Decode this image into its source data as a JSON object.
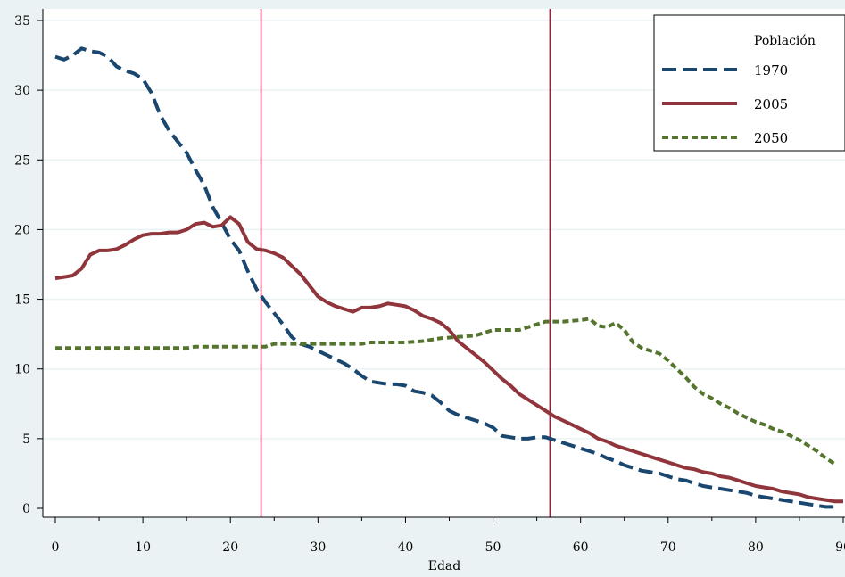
{
  "chart_data": {
    "type": "line",
    "title": "",
    "xlabel": "Edad",
    "ylabel": "",
    "xlim": [
      0,
      90
    ],
    "ylim": [
      0,
      35
    ],
    "x_ticks": [
      "0",
      "10",
      "20",
      "30",
      "40",
      "50",
      "60",
      "70",
      "80",
      "90"
    ],
    "y_ticks": [
      "0",
      "5",
      "10",
      "15",
      "20",
      "25",
      "30",
      "35"
    ],
    "grid": "horizontal",
    "legend": {
      "title": "Población",
      "position": "top-right"
    },
    "vlines": [
      23.5,
      56.5
    ],
    "vline_color": "#b0143c",
    "series": [
      {
        "name": "1970",
        "color": "#1a476f",
        "dash": "long-dash",
        "points": [
          [
            0,
            32.4
          ],
          [
            1,
            32.2
          ],
          [
            2,
            32.5
          ],
          [
            3,
            33.0
          ],
          [
            4,
            32.8
          ],
          [
            5,
            32.7
          ],
          [
            6,
            32.4
          ],
          [
            7,
            31.7
          ],
          [
            8,
            31.4
          ],
          [
            9,
            31.2
          ],
          [
            10,
            30.8
          ],
          [
            11,
            29.8
          ],
          [
            12,
            28.2
          ],
          [
            13,
            27.1
          ],
          [
            14,
            26.3
          ],
          [
            15,
            25.5
          ],
          [
            16,
            24.3
          ],
          [
            17,
            23.2
          ],
          [
            18,
            21.6
          ],
          [
            19,
            20.5
          ],
          [
            20,
            19.3
          ],
          [
            21,
            18.5
          ],
          [
            22,
            17.0
          ],
          [
            23,
            15.7
          ],
          [
            24,
            14.8
          ],
          [
            25,
            14.0
          ],
          [
            26,
            13.2
          ],
          [
            27,
            12.3
          ],
          [
            28,
            11.8
          ],
          [
            29,
            11.6
          ],
          [
            30,
            11.3
          ],
          [
            31,
            11.0
          ],
          [
            32,
            10.7
          ],
          [
            33,
            10.4
          ],
          [
            34,
            10.0
          ],
          [
            35,
            9.5
          ],
          [
            36,
            9.1
          ],
          [
            37,
            9.0
          ],
          [
            38,
            8.9
          ],
          [
            39,
            8.9
          ],
          [
            40,
            8.8
          ],
          [
            41,
            8.4
          ],
          [
            42,
            8.3
          ],
          [
            43,
            8.1
          ],
          [
            44,
            7.6
          ],
          [
            45,
            7.0
          ],
          [
            46,
            6.7
          ],
          [
            47,
            6.5
          ],
          [
            48,
            6.3
          ],
          [
            49,
            6.1
          ],
          [
            50,
            5.8
          ],
          [
            51,
            5.2
          ],
          [
            52,
            5.1
          ],
          [
            53,
            5.0
          ],
          [
            54,
            5.0
          ],
          [
            55,
            5.1
          ],
          [
            56,
            5.1
          ],
          [
            57,
            4.9
          ],
          [
            58,
            4.7
          ],
          [
            59,
            4.5
          ],
          [
            60,
            4.3
          ],
          [
            61,
            4.1
          ],
          [
            62,
            3.9
          ],
          [
            63,
            3.6
          ],
          [
            64,
            3.4
          ],
          [
            65,
            3.1
          ],
          [
            66,
            2.9
          ],
          [
            67,
            2.7
          ],
          [
            68,
            2.6
          ],
          [
            69,
            2.5
          ],
          [
            70,
            2.3
          ],
          [
            71,
            2.1
          ],
          [
            72,
            2.0
          ],
          [
            73,
            1.8
          ],
          [
            74,
            1.6
          ],
          [
            75,
            1.5
          ],
          [
            76,
            1.4
          ],
          [
            77,
            1.3
          ],
          [
            78,
            1.2
          ],
          [
            79,
            1.1
          ],
          [
            80,
            0.9
          ],
          [
            81,
            0.8
          ],
          [
            82,
            0.7
          ],
          [
            83,
            0.6
          ],
          [
            84,
            0.5
          ],
          [
            85,
            0.4
          ],
          [
            86,
            0.3
          ],
          [
            87,
            0.2
          ],
          [
            88,
            0.1
          ],
          [
            89,
            0.1
          ]
        ]
      },
      {
        "name": "2005",
        "color": "#90353b",
        "dash": "solid",
        "points": [
          [
            0,
            16.5
          ],
          [
            1,
            16.6
          ],
          [
            2,
            16.7
          ],
          [
            3,
            17.2
          ],
          [
            4,
            18.2
          ],
          [
            5,
            18.5
          ],
          [
            6,
            18.5
          ],
          [
            7,
            18.6
          ],
          [
            8,
            18.9
          ],
          [
            9,
            19.3
          ],
          [
            10,
            19.6
          ],
          [
            11,
            19.7
          ],
          [
            12,
            19.7
          ],
          [
            13,
            19.8
          ],
          [
            14,
            19.8
          ],
          [
            15,
            20.0
          ],
          [
            16,
            20.4
          ],
          [
            17,
            20.5
          ],
          [
            18,
            20.2
          ],
          [
            19,
            20.3
          ],
          [
            20,
            20.9
          ],
          [
            21,
            20.4
          ],
          [
            22,
            19.1
          ],
          [
            23,
            18.6
          ],
          [
            24,
            18.5
          ],
          [
            25,
            18.3
          ],
          [
            26,
            18.0
          ],
          [
            27,
            17.4
          ],
          [
            28,
            16.8
          ],
          [
            29,
            16.0
          ],
          [
            30,
            15.2
          ],
          [
            31,
            14.8
          ],
          [
            32,
            14.5
          ],
          [
            33,
            14.3
          ],
          [
            34,
            14.1
          ],
          [
            35,
            14.4
          ],
          [
            36,
            14.4
          ],
          [
            37,
            14.5
          ],
          [
            38,
            14.7
          ],
          [
            39,
            14.6
          ],
          [
            40,
            14.5
          ],
          [
            41,
            14.2
          ],
          [
            42,
            13.8
          ],
          [
            43,
            13.6
          ],
          [
            44,
            13.3
          ],
          [
            45,
            12.8
          ],
          [
            46,
            12.0
          ],
          [
            47,
            11.5
          ],
          [
            48,
            11.0
          ],
          [
            49,
            10.5
          ],
          [
            50,
            9.9
          ],
          [
            51,
            9.3
          ],
          [
            52,
            8.8
          ],
          [
            53,
            8.2
          ],
          [
            54,
            7.8
          ],
          [
            55,
            7.4
          ],
          [
            56,
            7.0
          ],
          [
            57,
            6.6
          ],
          [
            58,
            6.3
          ],
          [
            59,
            6.0
          ],
          [
            60,
            5.7
          ],
          [
            61,
            5.4
          ],
          [
            62,
            5.0
          ],
          [
            63,
            4.8
          ],
          [
            64,
            4.5
          ],
          [
            65,
            4.3
          ],
          [
            66,
            4.1
          ],
          [
            67,
            3.9
          ],
          [
            68,
            3.7
          ],
          [
            69,
            3.5
          ],
          [
            70,
            3.3
          ],
          [
            71,
            3.1
          ],
          [
            72,
            2.9
          ],
          [
            73,
            2.8
          ],
          [
            74,
            2.6
          ],
          [
            75,
            2.5
          ],
          [
            76,
            2.3
          ],
          [
            77,
            2.2
          ],
          [
            78,
            2.0
          ],
          [
            79,
            1.8
          ],
          [
            80,
            1.6
          ],
          [
            81,
            1.5
          ],
          [
            82,
            1.4
          ],
          [
            83,
            1.2
          ],
          [
            84,
            1.1
          ],
          [
            85,
            1.0
          ],
          [
            86,
            0.8
          ],
          [
            87,
            0.7
          ],
          [
            88,
            0.6
          ],
          [
            89,
            0.5
          ],
          [
            90,
            0.5
          ]
        ]
      },
      {
        "name": "2050",
        "color": "#55752f",
        "dash": "short-dash",
        "points": [
          [
            0,
            11.5
          ],
          [
            5,
            11.5
          ],
          [
            10,
            11.5
          ],
          [
            15,
            11.5
          ],
          [
            16,
            11.6
          ],
          [
            20,
            11.6
          ],
          [
            24,
            11.6
          ],
          [
            25,
            11.8
          ],
          [
            30,
            11.8
          ],
          [
            35,
            11.8
          ],
          [
            36,
            11.9
          ],
          [
            40,
            11.9
          ],
          [
            42,
            12.0
          ],
          [
            44,
            12.2
          ],
          [
            46,
            12.3
          ],
          [
            48,
            12.4
          ],
          [
            49,
            12.6
          ],
          [
            50,
            12.8
          ],
          [
            53,
            12.8
          ],
          [
            55,
            13.2
          ],
          [
            56,
            13.4
          ],
          [
            58,
            13.4
          ],
          [
            60,
            13.5
          ],
          [
            61,
            13.6
          ],
          [
            62,
            13.1
          ],
          [
            63,
            13.0
          ],
          [
            64,
            13.3
          ],
          [
            65,
            12.8
          ],
          [
            66,
            11.9
          ],
          [
            67,
            11.5
          ],
          [
            68,
            11.3
          ],
          [
            69,
            11.1
          ],
          [
            70,
            10.6
          ],
          [
            71,
            10.0
          ],
          [
            72,
            9.4
          ],
          [
            73,
            8.7
          ],
          [
            74,
            8.2
          ],
          [
            75,
            7.9
          ],
          [
            76,
            7.5
          ],
          [
            77,
            7.2
          ],
          [
            78,
            6.8
          ],
          [
            79,
            6.5
          ],
          [
            80,
            6.2
          ],
          [
            81,
            6.0
          ],
          [
            82,
            5.7
          ],
          [
            83,
            5.5
          ],
          [
            84,
            5.2
          ],
          [
            85,
            4.9
          ],
          [
            86,
            4.5
          ],
          [
            87,
            4.1
          ],
          [
            88,
            3.6
          ],
          [
            89,
            3.2
          ]
        ]
      }
    ]
  }
}
